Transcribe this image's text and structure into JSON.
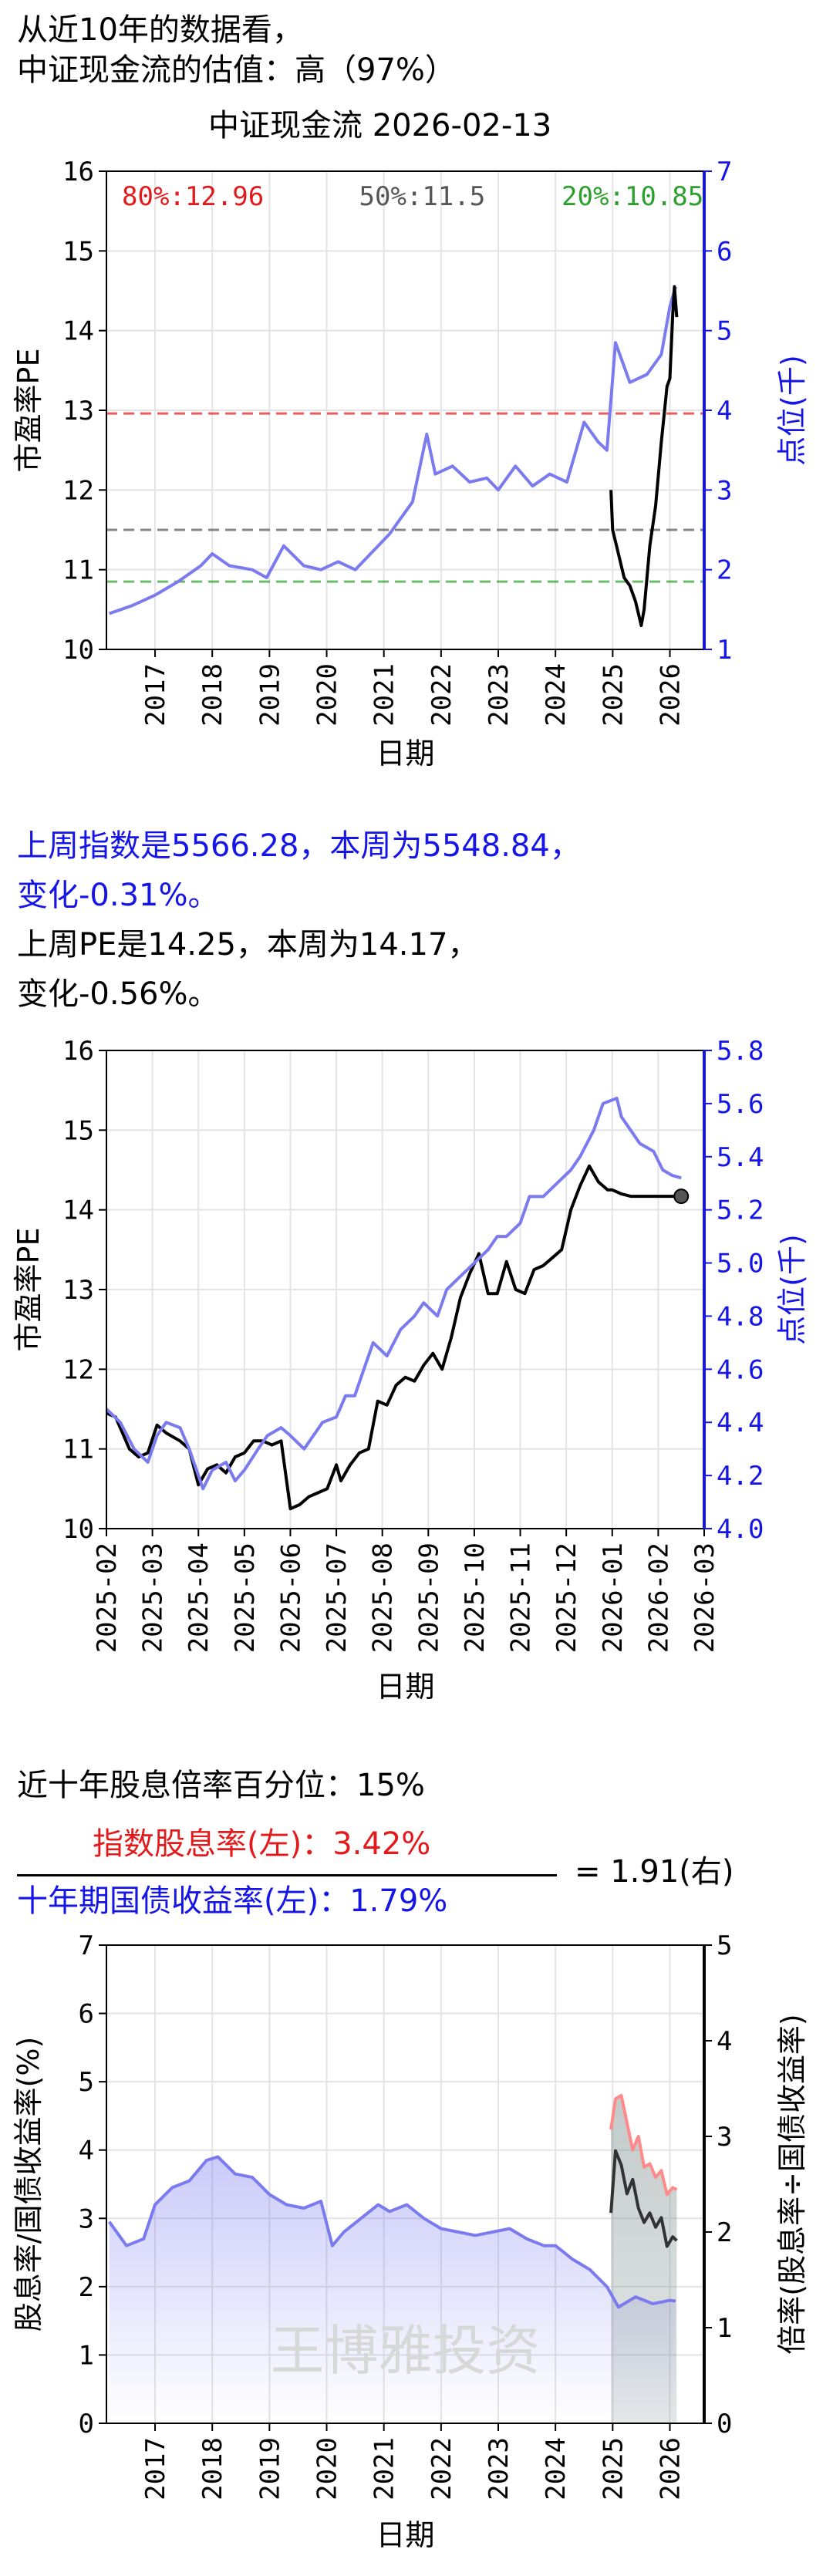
{
  "header": {
    "line1": "从近10年的数据看，",
    "line2": "中证现金流的估值：高（97%）",
    "title": "中证现金流 2026-02-13"
  },
  "weekly": {
    "line1": "上周指数是5566.28，本周为5548.84，",
    "line2": "变化-0.31%。",
    "line3": "上周PE是14.25，本周为14.17，",
    "line4": "变化-0.56%。"
  },
  "dividend": {
    "percentile_text": "近十年股息倍率百分位：15%",
    "numerator": "指数股息率(左)：3.42%",
    "denominator": "十年期国债收益率(左)：1.79%",
    "result": "= 1.91(右)",
    "watermark": "王博雅投资"
  },
  "colors": {
    "pe": "#000000",
    "index": "#7b7bf0",
    "red": "#e31a1c",
    "green": "#2ca02c",
    "gray": "#555555",
    "blue": "#1515e8"
  },
  "chart_data": [
    {
      "type": "line",
      "title": "中证现金流 2026-02-13",
      "xlabel": "日期",
      "ylabel": "市盈率PE",
      "ylabel_right": "点位(千)",
      "ylim": [
        10,
        16
      ],
      "ylim_right": [
        1,
        7
      ],
      "x_ticks": [
        "2017",
        "2018",
        "2019",
        "2020",
        "2021",
        "2022",
        "2023",
        "2024",
        "2025",
        "2026"
      ],
      "y_ticks": [
        "10",
        "11",
        "12",
        "13",
        "14",
        "15",
        "16"
      ],
      "y_ticks_right": [
        "1",
        "2",
        "3",
        "4",
        "5",
        "6",
        "7"
      ],
      "percentile_lines": [
        {
          "label": "80%:12.96",
          "value": 12.96,
          "color": "#e31a1c"
        },
        {
          "label": "50%:11.5",
          "value": 11.5,
          "color": "#555555"
        },
        {
          "label": "20%:10.85",
          "value": 10.85,
          "color": "#2ca02c"
        }
      ],
      "series": [
        {
          "axis": "right",
          "color": "#7b7bf0",
          "x": [
            2016.2,
            2016.6,
            2017.0,
            2017.4,
            2017.8,
            2018.0,
            2018.3,
            2018.7,
            2018.95,
            2019.25,
            2019.6,
            2019.9,
            2020.2,
            2020.5,
            2020.9,
            2021.1,
            2021.5,
            2021.75,
            2021.9,
            2022.2,
            2022.5,
            2022.8,
            2023.0,
            2023.3,
            2023.6,
            2023.9,
            2024.2,
            2024.5,
            2024.75,
            2024.9,
            2025.05,
            2025.3,
            2025.6,
            2025.85,
            2026.0,
            2026.1
          ],
          "y": [
            1.45,
            1.55,
            1.68,
            1.85,
            2.05,
            2.2,
            2.05,
            2.0,
            1.9,
            2.3,
            2.05,
            2.0,
            2.1,
            2.0,
            2.3,
            2.45,
            2.85,
            3.7,
            3.2,
            3.3,
            3.1,
            3.15,
            3.0,
            3.3,
            3.05,
            3.2,
            3.1,
            3.85,
            3.6,
            3.5,
            4.85,
            4.35,
            4.45,
            4.7,
            5.3,
            5.55
          ]
        },
        {
          "axis": "left",
          "color": "#000000",
          "x": [
            2024.97,
            2025.0,
            2025.1,
            2025.2,
            2025.3,
            2025.4,
            2025.5,
            2025.55,
            2025.65,
            2025.75,
            2025.85,
            2025.95,
            2026.0,
            2026.05,
            2026.08,
            2026.12
          ],
          "y": [
            12.0,
            11.5,
            11.2,
            10.9,
            10.8,
            10.6,
            10.3,
            10.5,
            11.3,
            11.8,
            12.6,
            13.3,
            13.4,
            14.2,
            14.55,
            14.17
          ]
        }
      ]
    },
    {
      "type": "line",
      "xlabel": "日期",
      "ylabel": "市盈率PE",
      "ylabel_right": "点位(千)",
      "ylim": [
        10,
        16
      ],
      "ylim_right": [
        4.0,
        5.8
      ],
      "x_ticks": [
        "2025-02",
        "2025-03",
        "2025-04",
        "2025-05",
        "2025-06",
        "2025-07",
        "2025-08",
        "2025-09",
        "2025-10",
        "2025-11",
        "2025-12",
        "2026-01",
        "2026-02",
        "2026-03"
      ],
      "y_ticks": [
        "10",
        "11",
        "12",
        "13",
        "14",
        "15",
        "16"
      ],
      "y_ticks_right": [
        "4.0",
        "4.2",
        "4.4",
        "4.6",
        "4.8",
        "5.0",
        "5.2",
        "5.4",
        "5.6",
        "5.8"
      ],
      "series": [
        {
          "axis": "left",
          "color": "#000000",
          "x": [
            0,
            0.2,
            0.5,
            0.7,
            0.9,
            1.1,
            1.3,
            1.6,
            1.8,
            2.0,
            2.2,
            2.4,
            2.6,
            2.8,
            3.0,
            3.2,
            3.4,
            3.6,
            3.8,
            4.0,
            4.2,
            4.4,
            4.6,
            4.8,
            5.0,
            5.1,
            5.3,
            5.5,
            5.7,
            5.9,
            6.1,
            6.3,
            6.5,
            6.7,
            6.9,
            7.1,
            7.3,
            7.5,
            7.7,
            7.9,
            8.1,
            8.3,
            8.5,
            8.7,
            8.9,
            9.1,
            9.3,
            9.5,
            9.7,
            9.9,
            10.1,
            10.3,
            10.5,
            10.7,
            10.9,
            11.0,
            11.2,
            11.4,
            11.6,
            11.8,
            12.0,
            12.1,
            12.25,
            12.4,
            12.5
          ],
          "y": [
            11.45,
            11.4,
            11.0,
            10.9,
            10.95,
            11.3,
            11.2,
            11.1,
            11.0,
            10.55,
            10.75,
            10.8,
            10.7,
            10.9,
            10.95,
            11.1,
            11.1,
            11.05,
            11.1,
            10.25,
            10.3,
            10.4,
            10.45,
            10.5,
            10.8,
            10.6,
            10.8,
            10.95,
            11.0,
            11.6,
            11.55,
            11.8,
            11.9,
            11.85,
            12.05,
            12.2,
            12.0,
            12.4,
            12.9,
            13.2,
            13.45,
            12.95,
            12.95,
            13.35,
            13.0,
            12.95,
            13.25,
            13.3,
            13.4,
            13.5,
            14.0,
            14.3,
            14.55,
            14.35,
            14.25,
            14.25,
            14.2,
            14.17,
            14.17,
            14.17,
            14.17,
            14.17,
            14.17,
            14.17,
            14.17
          ]
        },
        {
          "axis": "right",
          "color": "#7b7bf0",
          "x": [
            0,
            0.3,
            0.6,
            0.9,
            1.1,
            1.3,
            1.6,
            1.8,
            2.1,
            2.3,
            2.6,
            2.8,
            3.0,
            3.3,
            3.5,
            3.8,
            4.0,
            4.3,
            4.5,
            4.7,
            5.0,
            5.2,
            5.4,
            5.6,
            5.8,
            6.1,
            6.4,
            6.7,
            6.9,
            7.2,
            7.4,
            7.7,
            8.0,
            8.3,
            8.5,
            8.7,
            9.0,
            9.2,
            9.5,
            9.8,
            10.1,
            10.3,
            10.6,
            10.8,
            11.1,
            11.2,
            11.4,
            11.6,
            11.9,
            12.1,
            12.3,
            12.5
          ],
          "y": [
            4.45,
            4.4,
            4.3,
            4.25,
            4.35,
            4.4,
            4.38,
            4.3,
            4.15,
            4.22,
            4.25,
            4.18,
            4.22,
            4.3,
            4.35,
            4.38,
            4.35,
            4.3,
            4.35,
            4.4,
            4.42,
            4.5,
            4.5,
            4.6,
            4.7,
            4.65,
            4.75,
            4.8,
            4.85,
            4.8,
            4.9,
            4.95,
            5.0,
            5.05,
            5.1,
            5.1,
            5.15,
            5.25,
            5.25,
            5.3,
            5.35,
            5.4,
            5.5,
            5.6,
            5.62,
            5.55,
            5.5,
            5.45,
            5.42,
            5.35,
            5.33,
            5.32
          ]
        }
      ]
    },
    {
      "type": "line",
      "xlabel": "日期",
      "ylabel": "股息率/国债收益率(%)",
      "ylabel_right": "倍率(股息率÷国债收益率)",
      "ylim": [
        0,
        7
      ],
      "ylim_right": [
        0,
        5
      ],
      "x_ticks": [
        "2017",
        "2018",
        "2019",
        "2020",
        "2021",
        "2022",
        "2023",
        "2024",
        "2025",
        "2026"
      ],
      "y_ticks": [
        "0",
        "1",
        "2",
        "3",
        "4",
        "5",
        "6",
        "7"
      ],
      "y_ticks_right": [
        "0",
        "1",
        "2",
        "3",
        "4",
        "5"
      ],
      "series": [
        {
          "axis": "left",
          "color": "#7b7bf0",
          "x": [
            2016.2,
            2016.5,
            2016.8,
            2017.0,
            2017.3,
            2017.6,
            2017.9,
            2018.1,
            2018.4,
            2018.7,
            2019.0,
            2019.3,
            2019.6,
            2019.9,
            2020.1,
            2020.3,
            2020.6,
            2020.9,
            2021.1,
            2021.4,
            2021.7,
            2022.0,
            2022.3,
            2022.6,
            2022.9,
            2023.2,
            2023.5,
            2023.8,
            2024.0,
            2024.3,
            2024.6,
            2024.9,
            2025.1,
            2025.4,
            2025.7,
            2026.0,
            2026.1
          ],
          "y": [
            2.95,
            2.6,
            2.7,
            3.2,
            3.45,
            3.55,
            3.85,
            3.9,
            3.65,
            3.6,
            3.35,
            3.2,
            3.15,
            3.25,
            2.6,
            2.8,
            3.0,
            3.2,
            3.1,
            3.2,
            3.0,
            2.85,
            2.8,
            2.75,
            2.8,
            2.85,
            2.7,
            2.6,
            2.6,
            2.4,
            2.25,
            2.0,
            1.7,
            1.85,
            1.75,
            1.8,
            1.79
          ]
        },
        {
          "axis": "left",
          "color": "#ff8a8a",
          "x": [
            2024.97,
            2025.05,
            2025.15,
            2025.25,
            2025.35,
            2025.45,
            2025.55,
            2025.65,
            2025.75,
            2025.85,
            2025.95,
            2026.05,
            2026.12
          ],
          "y": [
            4.3,
            4.75,
            4.8,
            4.4,
            4.0,
            4.2,
            3.75,
            3.8,
            3.6,
            3.7,
            3.35,
            3.45,
            3.42
          ]
        },
        {
          "axis": "right",
          "color": "#333333",
          "x": [
            2024.97,
            2025.05,
            2025.15,
            2025.25,
            2025.35,
            2025.45,
            2025.55,
            2025.65,
            2025.75,
            2025.85,
            2025.95,
            2026.05,
            2026.12
          ],
          "y": [
            2.2,
            2.85,
            2.7,
            2.4,
            2.55,
            2.25,
            2.1,
            2.2,
            2.05,
            2.15,
            1.85,
            1.95,
            1.91
          ]
        }
      ]
    }
  ]
}
